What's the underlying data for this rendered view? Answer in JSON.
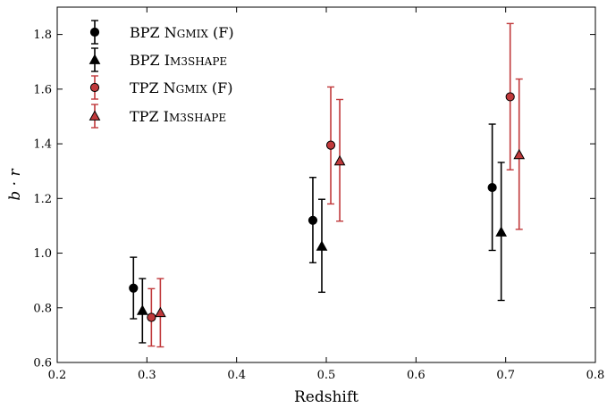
{
  "chart_data": {
    "type": "scatter",
    "xlabel": "Redshift",
    "ylabel": "b · r",
    "xlim": [
      0.2,
      0.8
    ],
    "ylim": [
      0.6,
      1.9
    ],
    "xticks": [
      "0.2",
      "0.3",
      "0.4",
      "0.5",
      "0.6",
      "0.7",
      "0.8"
    ],
    "yticks": [
      "0.6",
      "0.8",
      "1.0",
      "1.2",
      "1.4",
      "1.6",
      "1.8"
    ],
    "grid": false,
    "legend_position": "top-left",
    "series": [
      {
        "name": "BPZ Ngmix (F)",
        "name_parts": [
          "BPZ N",
          "GMIX",
          " (F)"
        ],
        "marker": "circle",
        "color": "#000000",
        "points": [
          {
            "x": 0.285,
            "y": 0.872,
            "lo": 0.76,
            "hi": 0.985
          },
          {
            "x": 0.485,
            "y": 1.12,
            "lo": 0.965,
            "hi": 1.277
          },
          {
            "x": 0.685,
            "y": 1.24,
            "lo": 1.01,
            "hi": 1.472
          }
        ]
      },
      {
        "name": "BPZ Im3shape",
        "name_parts": [
          "BPZ I",
          "M3SHAPE",
          ""
        ],
        "marker": "triangle",
        "color": "#000000",
        "points": [
          {
            "x": 0.295,
            "y": 0.79,
            "lo": 0.672,
            "hi": 0.907
          },
          {
            "x": 0.495,
            "y": 1.025,
            "lo": 0.857,
            "hi": 1.197
          },
          {
            "x": 0.695,
            "y": 1.077,
            "lo": 0.827,
            "hi": 1.332
          }
        ]
      },
      {
        "name": "TPZ Ngmix (F)",
        "name_parts": [
          "TPZ N",
          "GMIX",
          " (F)"
        ],
        "marker": "circle",
        "color": "#c0393b",
        "points": [
          {
            "x": 0.305,
            "y": 0.765,
            "lo": 0.66,
            "hi": 0.87
          },
          {
            "x": 0.505,
            "y": 1.395,
            "lo": 1.18,
            "hi": 1.608
          },
          {
            "x": 0.705,
            "y": 1.572,
            "lo": 1.305,
            "hi": 1.84
          }
        ]
      },
      {
        "name": "TPZ Im3shape",
        "name_parts": [
          "TPZ I",
          "M3SHAPE",
          ""
        ],
        "marker": "triangle",
        "color": "#c0393b",
        "points": [
          {
            "x": 0.315,
            "y": 0.782,
            "lo": 0.657,
            "hi": 0.907
          },
          {
            "x": 0.515,
            "y": 1.337,
            "lo": 1.117,
            "hi": 1.562
          },
          {
            "x": 0.715,
            "y": 1.36,
            "lo": 1.087,
            "hi": 1.637
          }
        ]
      }
    ]
  }
}
